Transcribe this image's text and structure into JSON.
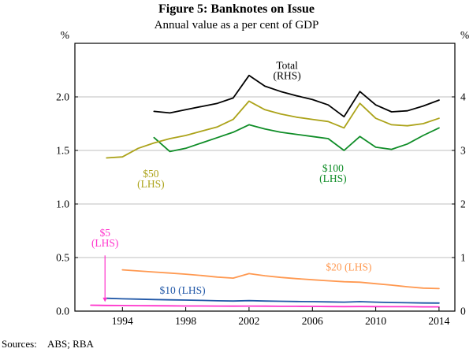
{
  "chart_data": {
    "type": "line",
    "title": "Figure 5: Banknotes on Issue",
    "subtitle": "Annual value as a per cent of GDP",
    "source": {
      "label": "Sources:",
      "value": "ABS; RBA"
    },
    "style": {
      "grid_color": "#bfbfbf",
      "axis_color": "#000000",
      "background": "#ffffff"
    },
    "x_axis": {
      "range": [
        1991,
        2015
      ],
      "ticks": [
        1994,
        1998,
        2002,
        2006,
        2010,
        2014
      ],
      "tick_labels": [
        "1994",
        "1998",
        "2002",
        "2006",
        "2010",
        "2014"
      ]
    },
    "left_axis": {
      "unit": "%",
      "range": [
        0,
        2.5
      ],
      "ticks": [
        0,
        0.5,
        1.0,
        1.5,
        2.0
      ],
      "tick_labels": [
        "0.0",
        "0.5",
        "1.0",
        "1.5",
        "2.0"
      ],
      "gridlines": [
        0.5,
        1.0,
        1.5,
        2.0
      ]
    },
    "right_axis": {
      "unit": "%",
      "range": [
        0,
        5
      ],
      "ticks": [
        0,
        1,
        2,
        3,
        4
      ],
      "tick_labels": [
        "0",
        "1",
        "2",
        "3",
        "4"
      ]
    },
    "series": [
      {
        "id": "five",
        "name": "$5",
        "scale": "LHS",
        "axis": "left",
        "color": "#ff33cc",
        "start": 1992,
        "values": [
          0.055,
          0.053,
          0.052,
          0.051,
          0.05,
          0.049,
          0.048,
          0.048,
          0.047,
          0.046,
          0.047,
          0.046,
          0.045,
          0.045,
          0.044,
          0.043,
          0.042,
          0.043,
          0.042,
          0.041,
          0.041,
          0.04,
          0.04
        ]
      },
      {
        "id": "ten",
        "name": "$10",
        "scale": "LHS",
        "axis": "left",
        "color": "#2057a7",
        "start": 1993,
        "values": [
          0.12,
          0.115,
          0.112,
          0.108,
          0.105,
          0.103,
          0.1,
          0.096,
          0.094,
          0.098,
          0.094,
          0.092,
          0.09,
          0.088,
          0.086,
          0.084,
          0.088,
          0.084,
          0.08,
          0.078,
          0.076,
          0.075
        ]
      },
      {
        "id": "twenty",
        "name": "$20",
        "scale": "LHS",
        "axis": "left",
        "color": "#ff9951",
        "start": 1994,
        "values": [
          0.385,
          0.375,
          0.365,
          0.355,
          0.345,
          0.332,
          0.318,
          0.308,
          0.35,
          0.33,
          0.315,
          0.303,
          0.293,
          0.283,
          0.274,
          0.27,
          0.256,
          0.243,
          0.227,
          0.215,
          0.21
        ]
      },
      {
        "id": "hundred",
        "name": "$100",
        "scale": "LHS",
        "axis": "left",
        "color": "#0f8d27",
        "start": 1996,
        "values": [
          1.62,
          1.49,
          1.52,
          1.57,
          1.62,
          1.67,
          1.74,
          1.7,
          1.67,
          1.65,
          1.63,
          1.61,
          1.5,
          1.63,
          1.53,
          1.51,
          1.56,
          1.64,
          1.71
        ]
      },
      {
        "id": "fifty",
        "name": "$50",
        "scale": "LHS",
        "axis": "left",
        "color": "#aca31a",
        "start": 1993,
        "values": [
          1.43,
          1.44,
          1.52,
          1.57,
          1.61,
          1.64,
          1.68,
          1.72,
          1.79,
          1.96,
          1.88,
          1.84,
          1.81,
          1.79,
          1.77,
          1.71,
          1.94,
          1.8,
          1.74,
          1.73,
          1.75,
          1.8
        ]
      },
      {
        "id": "total",
        "name": "Total",
        "scale": "RHS",
        "axis": "right",
        "color": "#000000",
        "start": 1996,
        "values": [
          3.73,
          3.7,
          3.76,
          3.82,
          3.88,
          3.98,
          4.4,
          4.2,
          4.1,
          4.02,
          3.95,
          3.85,
          3.63,
          4.1,
          3.85,
          3.72,
          3.74,
          3.83,
          3.94
        ]
      }
    ],
    "annotations": [
      {
        "id": "total-label",
        "lines": [
          "Total",
          "(RHS)"
        ],
        "x": 2004.4,
        "y": 2.26,
        "color": "#000000"
      },
      {
        "id": "fifty-label",
        "lines": [
          "$50",
          "(LHS)"
        ],
        "x": 1995.8,
        "y": 1.25,
        "color": "#aca31a"
      },
      {
        "id": "hundred-label",
        "lines": [
          "$100",
          "(LHS)"
        ],
        "x": 2007.3,
        "y": 1.3,
        "color": "#0f8d27"
      },
      {
        "id": "twenty-label",
        "lines": [
          "$20 (LHS)"
        ],
        "x": 2008.3,
        "y": 0.38,
        "color": "#ff9951"
      },
      {
        "id": "ten-label",
        "lines": [
          "$10 (LHS)"
        ],
        "x": 1997.8,
        "y": 0.16,
        "color": "#2057a7"
      },
      {
        "id": "five-label",
        "lines": [
          "$5",
          "(LHS)"
        ],
        "x": 1992.9,
        "y": 0.7,
        "color": "#ff33cc",
        "arrow": {
          "from_y": 0.52,
          "to_y": 0.085
        }
      }
    ]
  }
}
